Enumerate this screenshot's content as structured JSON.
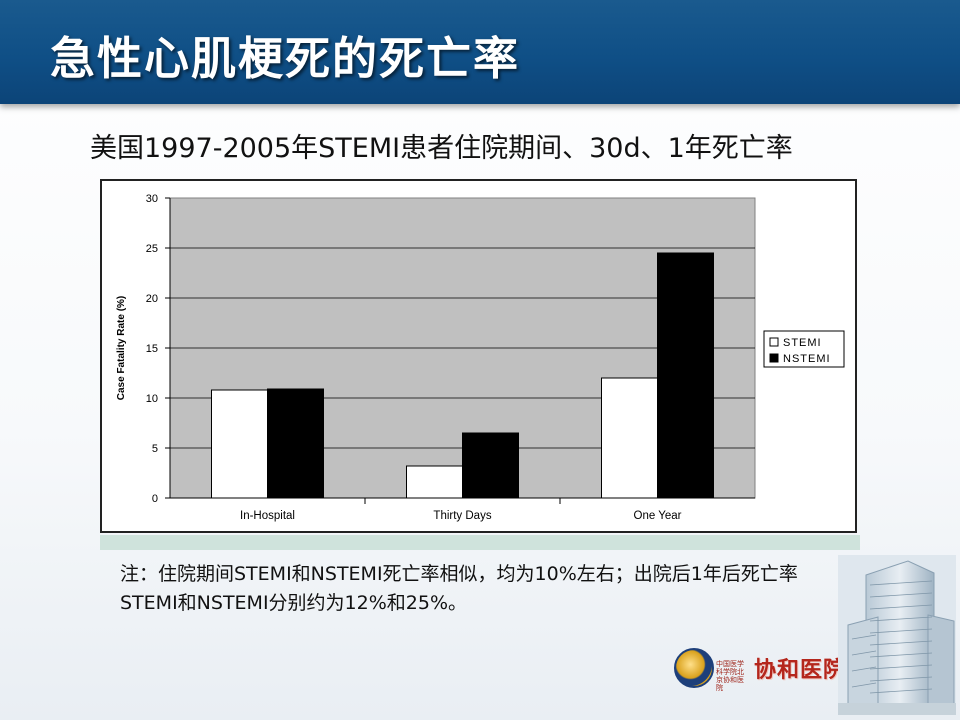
{
  "slide": {
    "title": "急性心肌梗死的死亡率",
    "subtitle": "美国1997-2005年STEMI患者住院期间、30d、1年死亡率",
    "note": "注：住院期间STEMI和NSTEMI死亡率相似，均为10%左右；出院后1年后死亡率STEMI和NSTEMI分别约为12%和25%。"
  },
  "logo": {
    "text": "协和医院",
    "small_text": "中国医学科学院北京协和医院"
  },
  "chart_data": {
    "type": "bar",
    "categories": [
      "In-Hospital",
      "Thirty Days",
      "One Year"
    ],
    "series": [
      {
        "name": "STEMI",
        "values": [
          10.8,
          3.2,
          12.0
        ],
        "color": "#ffffff"
      },
      {
        "name": "NSTEMI",
        "values": [
          10.9,
          6.5,
          24.5
        ],
        "color": "#000000"
      }
    ],
    "ylabel": "Case Fatality Rate (%)",
    "ylim": [
      0,
      30
    ],
    "yticks": [
      0,
      5,
      10,
      15,
      20,
      25,
      30
    ],
    "grid": true,
    "legend_position": "right"
  }
}
